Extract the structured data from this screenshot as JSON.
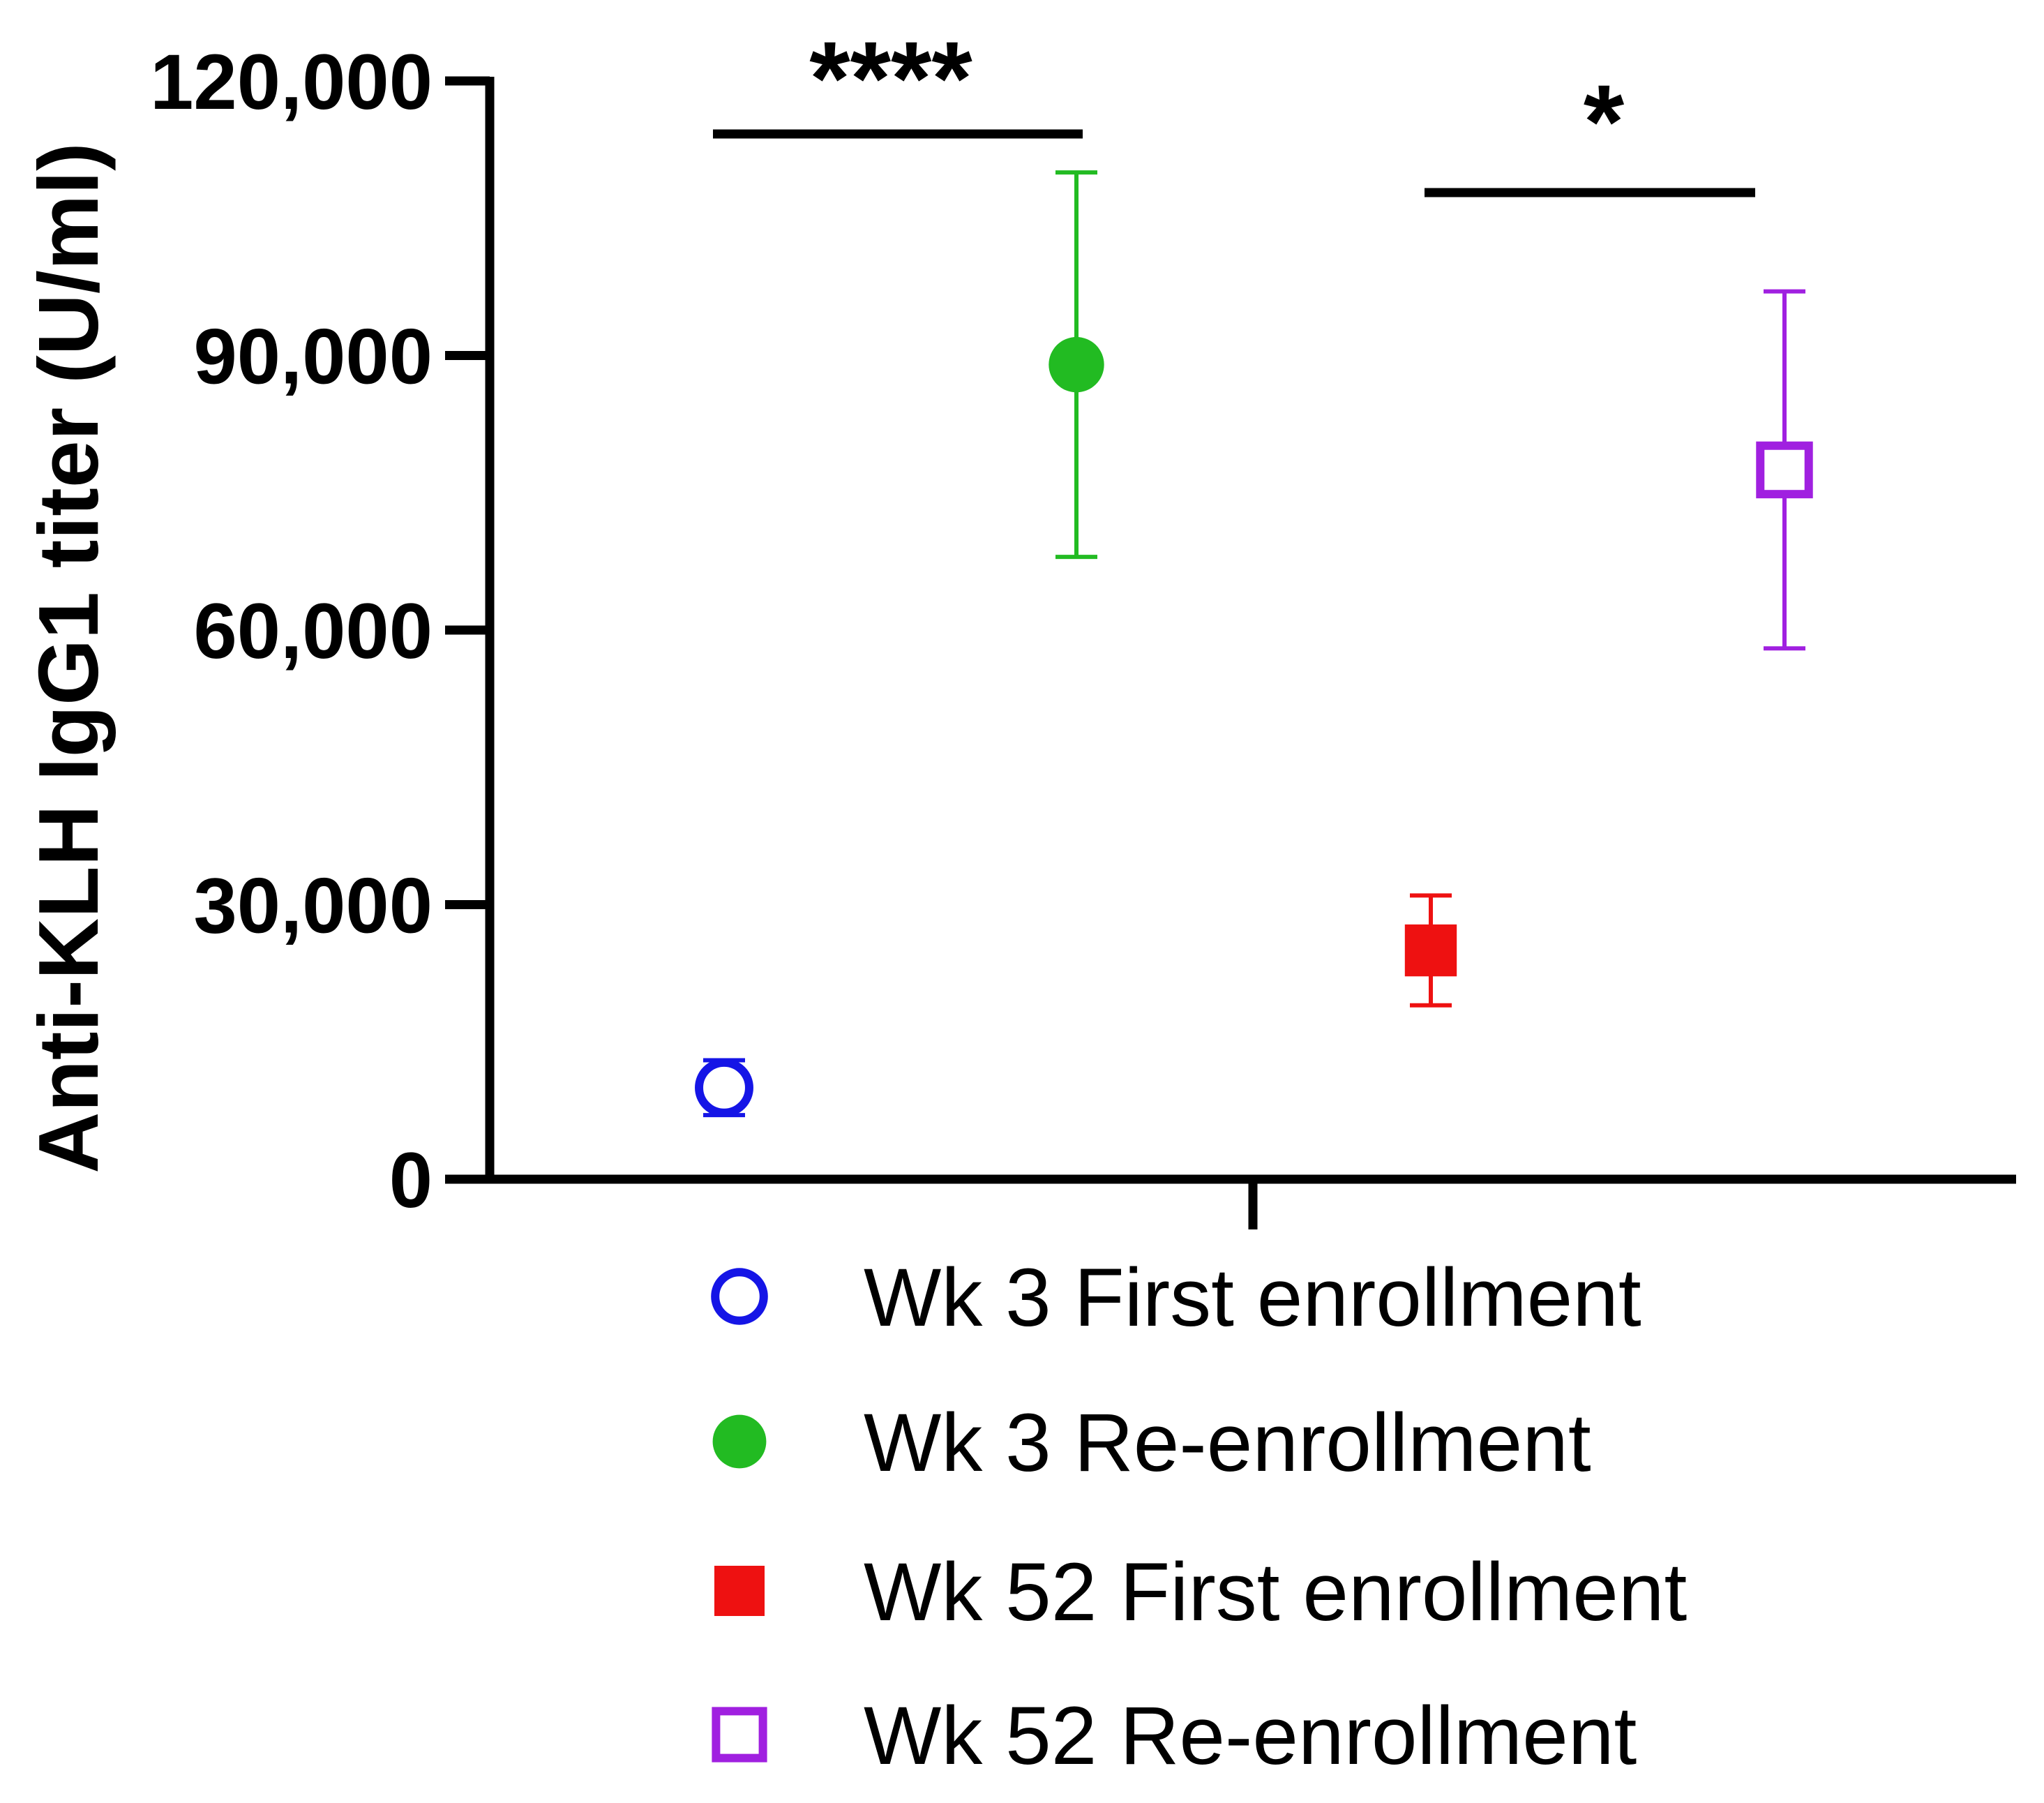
{
  "chart_data": {
    "type": "scatter",
    "title": "",
    "xlabel": "",
    "ylabel": "Anti-KLH IgG1 titer (U/ml)",
    "ylim": [
      0,
      120000
    ],
    "yticks": [
      0,
      30000,
      60000,
      90000,
      120000
    ],
    "ytick_labels": [
      "0",
      "30,000",
      "60,000",
      "90,000",
      "120,000"
    ],
    "grid": false,
    "legend_position": "bottom",
    "series": [
      {
        "name": "Wk 3 First enrollment",
        "mean": 10000,
        "err_low": 7000,
        "err_high": 13000,
        "color": "#1515e6",
        "marker": "circle-open"
      },
      {
        "name": "Wk 3 Re-enrollment",
        "mean": 89000,
        "err_low": 68000,
        "err_high": 110000,
        "color": "#22bb22",
        "marker": "circle-filled"
      },
      {
        "name": "Wk 52 First enrollment",
        "mean": 25000,
        "err_low": 19000,
        "err_high": 31000,
        "color": "#ee1111",
        "marker": "square-filled"
      },
      {
        "name": "Wk 52 Re-enrollment",
        "mean": 77500,
        "err_low": 58000,
        "err_high": 97000,
        "color": "#a020e0",
        "marker": "square-open"
      }
    ],
    "significance": [
      {
        "from": 0,
        "to": 1,
        "label": "****"
      },
      {
        "from": 2,
        "to": 3,
        "label": "*"
      }
    ]
  }
}
